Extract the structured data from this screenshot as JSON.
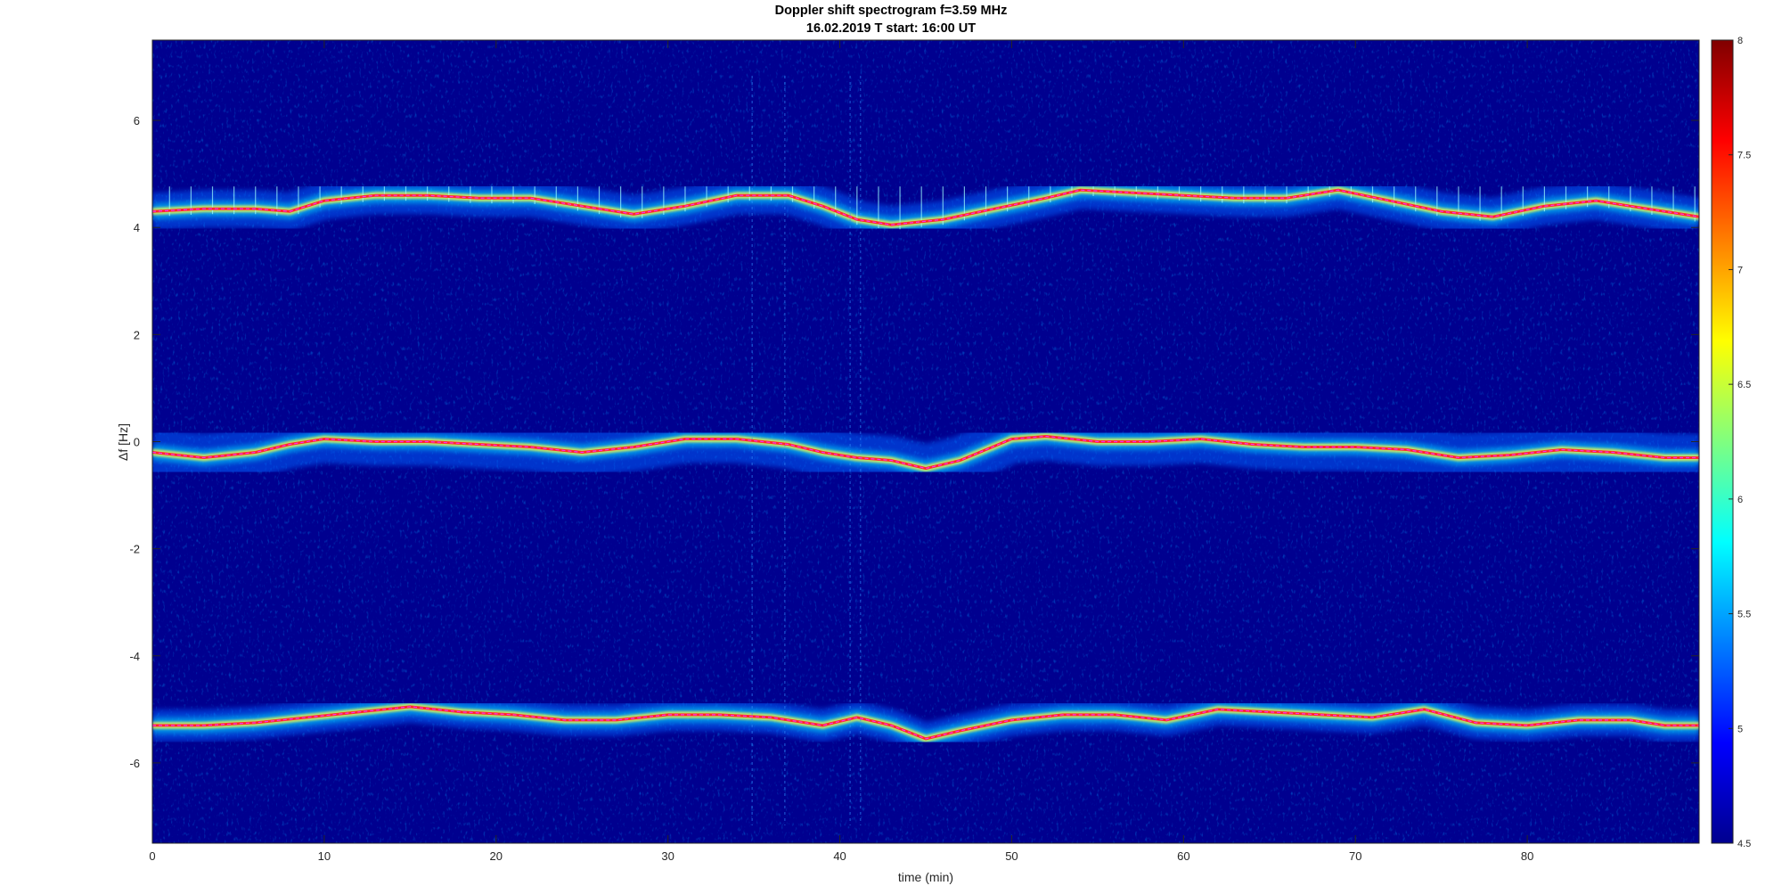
{
  "chart_data": {
    "type": "heatmap",
    "title": "Doppler shift spectrogram f=3.59 MHz",
    "subtitle": "16.02.2019   T start: 16:00 UT",
    "xlabel": "time (min)",
    "ylabel": "Δf [Hz]",
    "xlim": [
      0,
      90
    ],
    "ylim": [
      -7.5,
      7.5
    ],
    "xticks": [
      0,
      10,
      20,
      30,
      40,
      50,
      60,
      70,
      80
    ],
    "yticks": [
      -6,
      -4,
      -2,
      0,
      2,
      4,
      6
    ],
    "colormap": "jet",
    "clim": [
      4.5,
      8
    ],
    "colorbar_ticks": [
      "4.5",
      "5",
      "5.5",
      "6",
      "6.5",
      "7",
      "7.5",
      "8"
    ],
    "grid": false,
    "traces": [
      {
        "x": [
          0,
          3,
          6,
          8,
          10,
          13,
          16,
          19,
          22,
          25,
          28,
          31,
          34,
          37,
          39,
          41,
          43,
          46,
          49,
          52,
          54,
          57,
          60,
          63,
          66,
          69,
          72,
          75,
          78,
          81,
          84,
          87,
          90
        ],
        "y": [
          4.3,
          4.35,
          4.35,
          4.3,
          4.5,
          4.6,
          4.6,
          4.55,
          4.55,
          4.4,
          4.25,
          4.4,
          4.6,
          4.6,
          4.4,
          4.15,
          4.05,
          4.15,
          4.35,
          4.55,
          4.7,
          4.65,
          4.6,
          4.55,
          4.55,
          4.7,
          4.5,
          4.3,
          4.2,
          4.4,
          4.5,
          4.35,
          4.2
        ]
      },
      {
        "x": [
          0,
          3,
          6,
          8,
          10,
          13,
          16,
          19,
          22,
          25,
          28,
          31,
          34,
          37,
          39,
          41,
          43,
          45,
          47,
          50,
          52,
          55,
          58,
          61,
          64,
          67,
          70,
          73,
          76,
          79,
          82,
          85,
          88,
          90
        ],
        "y": [
          -0.2,
          -0.3,
          -0.2,
          -0.05,
          0.05,
          0.0,
          0.0,
          -0.05,
          -0.1,
          -0.2,
          -0.1,
          0.05,
          0.05,
          -0.05,
          -0.2,
          -0.3,
          -0.35,
          -0.5,
          -0.35,
          0.05,
          0.1,
          0.0,
          0.0,
          0.05,
          -0.05,
          -0.1,
          -0.1,
          -0.15,
          -0.3,
          -0.25,
          -0.15,
          -0.2,
          -0.3,
          -0.3
        ]
      },
      {
        "x": [
          0,
          3,
          6,
          9,
          12,
          15,
          18,
          21,
          24,
          27,
          30,
          33,
          36,
          39,
          41,
          43,
          45,
          47,
          50,
          53,
          56,
          59,
          62,
          65,
          68,
          71,
          74,
          77,
          80,
          83,
          86,
          88,
          90
        ],
        "y": [
          -5.3,
          -5.3,
          -5.25,
          -5.15,
          -5.05,
          -4.95,
          -5.05,
          -5.1,
          -5.2,
          -5.2,
          -5.1,
          -5.1,
          -5.15,
          -5.3,
          -5.15,
          -5.3,
          -5.55,
          -5.4,
          -5.2,
          -5.1,
          -5.1,
          -5.2,
          -5.0,
          -5.05,
          -5.1,
          -5.15,
          -5.0,
          -5.25,
          -5.3,
          -5.2,
          -5.2,
          -5.3,
          -5.3
        ]
      }
    ]
  },
  "colors": {
    "background": "#00008f",
    "trace": "#ff2a2a",
    "magenta": "#ff33ff",
    "text": "#262626"
  }
}
